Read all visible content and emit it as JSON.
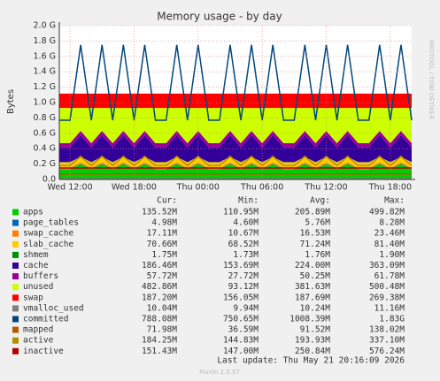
{
  "chart_data": {
    "type": "area",
    "title": "Memory usage - by day",
    "y_label": "Bytes",
    "watermark": "RRDTOOL / TOBI OETIKER",
    "categories": [
      null,
      "Wed 12:00",
      null,
      null,
      null,
      null,
      null,
      "Wed 18:00",
      null,
      null,
      null,
      null,
      null,
      "Thu 00:00",
      null,
      null,
      null,
      null,
      null,
      "Thu 06:00",
      null,
      null,
      null,
      null,
      null,
      "Thu 12:00",
      null,
      null,
      null,
      null,
      null,
      "Thu 18:00",
      null,
      null
    ],
    "ylim": [
      0,
      2
    ],
    "yticks": [
      {
        "value": 0,
        "label": "0.0"
      },
      {
        "value": 0.2,
        "label": "0.2 G"
      },
      {
        "value": 0.4,
        "label": "0.4 G"
      },
      {
        "value": 0.6,
        "label": "0.6 G"
      },
      {
        "value": 0.8,
        "label": "0.8 G"
      },
      {
        "value": 1.0,
        "label": "1.0 G"
      },
      {
        "value": 1.2,
        "label": "1.2 G"
      },
      {
        "value": 1.4,
        "label": "1.4 G"
      },
      {
        "value": 1.6,
        "label": "1.6 G"
      },
      {
        "value": 1.8,
        "label": "1.8 G"
      },
      {
        "value": 2.0,
        "label": "2.0 G"
      }
    ],
    "grid": true,
    "legend_headers": [
      "Cur:",
      "Min:",
      "Avg:",
      "Max:"
    ],
    "series": [
      {
        "name": "apps",
        "color": "#00CC00",
        "style": "area",
        "cur": "135.52M",
        "min": "110.95M",
        "avg": "205.89M",
        "max": "499.82M",
        "values": [
          0.13,
          0.13,
          0.2,
          0.13,
          0.2,
          0.13,
          0.2,
          0.13,
          0.2,
          0.13,
          0.13,
          0.2,
          0.13,
          0.2,
          0.13,
          0.13,
          0.2,
          0.13,
          0.2,
          0.13,
          0.2,
          0.13,
          0.13,
          0.2,
          0.13,
          0.2,
          0.13,
          0.2,
          0.13,
          0.13,
          0.2,
          0.13,
          0.2,
          0.13
        ]
      },
      {
        "name": "page_tables",
        "color": "#0066B3",
        "style": "area",
        "cur": "4.98M",
        "min": "4.60M",
        "avg": "5.76M",
        "max": "8.28M",
        "values": [
          0.005,
          0.005,
          0.005,
          0.005,
          0.005,
          0.005,
          0.005,
          0.005,
          0.005,
          0.005,
          0.005,
          0.005,
          0.005,
          0.005,
          0.005,
          0.005,
          0.005,
          0.005,
          0.005,
          0.005,
          0.005,
          0.005,
          0.005,
          0.005,
          0.005,
          0.005,
          0.005,
          0.005,
          0.005,
          0.005,
          0.005,
          0.005,
          0.005,
          0.005
        ]
      },
      {
        "name": "swap_cache",
        "color": "#FF8000",
        "style": "area",
        "cur": "17.11M",
        "min": "10.67M",
        "avg": "16.53M",
        "max": "23.46M",
        "values": [
          0.017,
          0.017,
          0.017,
          0.017,
          0.017,
          0.017,
          0.017,
          0.017,
          0.017,
          0.017,
          0.017,
          0.017,
          0.017,
          0.017,
          0.017,
          0.017,
          0.017,
          0.017,
          0.017,
          0.017,
          0.017,
          0.017,
          0.017,
          0.017,
          0.017,
          0.017,
          0.017,
          0.017,
          0.017,
          0.017,
          0.017,
          0.017,
          0.017,
          0.017
        ]
      },
      {
        "name": "slab_cache",
        "color": "#FFCC00",
        "style": "area",
        "cur": "70.66M",
        "min": "68.52M",
        "avg": "71.24M",
        "max": "81.40M",
        "values": [
          0.071,
          0.071,
          0.071,
          0.071,
          0.071,
          0.071,
          0.071,
          0.071,
          0.071,
          0.071,
          0.071,
          0.071,
          0.071,
          0.071,
          0.071,
          0.071,
          0.071,
          0.071,
          0.071,
          0.071,
          0.071,
          0.071,
          0.071,
          0.071,
          0.071,
          0.071,
          0.071,
          0.071,
          0.071,
          0.071,
          0.071,
          0.071,
          0.071,
          0.071
        ]
      },
      {
        "name": "shmem",
        "color": "#008F00",
        "style": "area",
        "cur": "1.75M",
        "min": "1.73M",
        "avg": "1.76M",
        "max": "1.90M",
        "values": [
          0.002,
          0.002,
          0.002,
          0.002,
          0.002,
          0.002,
          0.002,
          0.002,
          0.002,
          0.002,
          0.002,
          0.002,
          0.002,
          0.002,
          0.002,
          0.002,
          0.002,
          0.002,
          0.002,
          0.002,
          0.002,
          0.002,
          0.002,
          0.002,
          0.002,
          0.002,
          0.002,
          0.002,
          0.002,
          0.002,
          0.002,
          0.002,
          0.002,
          0.002
        ]
      },
      {
        "name": "cache",
        "color": "#330099",
        "style": "area",
        "cur": "186.46M",
        "min": "153.69M",
        "avg": "224.00M",
        "max": "363.09M",
        "values": [
          0.19,
          0.19,
          0.28,
          0.19,
          0.28,
          0.19,
          0.28,
          0.19,
          0.28,
          0.19,
          0.19,
          0.28,
          0.19,
          0.28,
          0.19,
          0.19,
          0.28,
          0.19,
          0.28,
          0.19,
          0.28,
          0.19,
          0.19,
          0.28,
          0.19,
          0.28,
          0.19,
          0.28,
          0.19,
          0.19,
          0.28,
          0.19,
          0.28,
          0.19
        ]
      },
      {
        "name": "buffers",
        "color": "#990099",
        "style": "area",
        "cur": "57.72M",
        "min": "27.72M",
        "avg": "50.25M",
        "max": "61.78M",
        "values": [
          0.057,
          0.057,
          0.057,
          0.057,
          0.057,
          0.057,
          0.057,
          0.057,
          0.057,
          0.057,
          0.057,
          0.057,
          0.057,
          0.057,
          0.057,
          0.057,
          0.057,
          0.057,
          0.057,
          0.057,
          0.057,
          0.057,
          0.057,
          0.057,
          0.057,
          0.057,
          0.057,
          0.057,
          0.057,
          0.057,
          0.057,
          0.057,
          0.057,
          0.057
        ]
      },
      {
        "name": "unused",
        "color": "#CCFF00",
        "style": "area",
        "cur": "482.86M",
        "min": "93.12M",
        "avg": "381.63M",
        "max": "500.48M",
        "values": [
          0.458,
          0.458,
          0.298,
          0.458,
          0.298,
          0.458,
          0.298,
          0.458,
          0.298,
          0.458,
          0.458,
          0.298,
          0.458,
          0.298,
          0.458,
          0.458,
          0.298,
          0.458,
          0.298,
          0.458,
          0.298,
          0.458,
          0.458,
          0.298,
          0.458,
          0.298,
          0.458,
          0.298,
          0.458,
          0.458,
          0.298,
          0.458,
          0.298,
          0.458
        ]
      },
      {
        "name": "swap",
        "color": "#FF0000",
        "style": "area",
        "cur": "187.20M",
        "min": "156.05M",
        "avg": "187.69M",
        "max": "269.38M",
        "values": [
          0.187,
          0.187,
          0.187,
          0.187,
          0.187,
          0.187,
          0.187,
          0.187,
          0.187,
          0.187,
          0.187,
          0.187,
          0.187,
          0.187,
          0.187,
          0.187,
          0.187,
          0.187,
          0.187,
          0.187,
          0.187,
          0.187,
          0.187,
          0.187,
          0.187,
          0.187,
          0.187,
          0.187,
          0.187,
          0.187,
          0.187,
          0.187,
          0.187,
          0.187
        ]
      },
      {
        "name": "vmalloc_used",
        "color": "#808080",
        "style": "line",
        "cur": "10.04M",
        "min": "9.94M",
        "avg": "10.24M",
        "max": "11.16M",
        "values": [
          0.01,
          0.01,
          0.01,
          0.01,
          0.01,
          0.01,
          0.01,
          0.01,
          0.01,
          0.01,
          0.01,
          0.01,
          0.01,
          0.01,
          0.01,
          0.01,
          0.01,
          0.01,
          0.01,
          0.01,
          0.01,
          0.01,
          0.01,
          0.01,
          0.01,
          0.01,
          0.01,
          0.01,
          0.01,
          0.01,
          0.01,
          0.01,
          0.01,
          0.01
        ]
      },
      {
        "name": "committed",
        "color": "#00487D",
        "style": "line",
        "cur": "788.08M",
        "min": "750.65M",
        "avg": "1008.39M",
        "max": "1.83G",
        "values": [
          0.77,
          0.77,
          1.75,
          0.77,
          1.75,
          0.77,
          1.75,
          0.77,
          1.75,
          0.77,
          0.77,
          1.75,
          0.77,
          1.75,
          0.77,
          0.77,
          1.75,
          0.77,
          1.75,
          0.77,
          1.75,
          0.77,
          0.77,
          1.75,
          0.77,
          1.75,
          0.77,
          1.75,
          0.77,
          0.77,
          1.75,
          0.77,
          1.75,
          0.77
        ]
      },
      {
        "name": "mapped",
        "color": "#B35A00",
        "style": "line",
        "cur": "71.98M",
        "min": "36.59M",
        "avg": "91.52M",
        "max": "138.02M",
        "values": [
          0.072,
          0.072,
          0.072,
          0.072,
          0.072,
          0.072,
          0.072,
          0.072,
          0.072,
          0.072,
          0.072,
          0.072,
          0.072,
          0.072,
          0.072,
          0.072,
          0.072,
          0.072,
          0.072,
          0.072,
          0.072,
          0.072,
          0.072,
          0.072,
          0.072,
          0.072,
          0.072,
          0.072,
          0.072,
          0.072,
          0.072,
          0.072,
          0.072,
          0.072
        ]
      },
      {
        "name": "active",
        "color": "#B38F00",
        "style": "line",
        "cur": "184.25M",
        "min": "144.83M",
        "avg": "193.93M",
        "max": "337.10M",
        "values": [
          0.18,
          0.18,
          0.3,
          0.18,
          0.3,
          0.18,
          0.3,
          0.18,
          0.3,
          0.18,
          0.18,
          0.3,
          0.18,
          0.3,
          0.18,
          0.18,
          0.3,
          0.18,
          0.3,
          0.18,
          0.3,
          0.18,
          0.18,
          0.3,
          0.18,
          0.3,
          0.18,
          0.3,
          0.18,
          0.18,
          0.3,
          0.18,
          0.3,
          0.18
        ]
      },
      {
        "name": "inactive",
        "color": "#B30000",
        "style": "line",
        "cur": "151.43M",
        "min": "147.00M",
        "avg": "250.84M",
        "max": "576.24M",
        "values": [
          0.15,
          0.15,
          0.15,
          0.15,
          0.15,
          0.15,
          0.15,
          0.15,
          0.15,
          0.15,
          0.15,
          0.15,
          0.15,
          0.15,
          0.15,
          0.15,
          0.15,
          0.15,
          0.15,
          0.15,
          0.15,
          0.15,
          0.15,
          0.15,
          0.15,
          0.15,
          0.15,
          0.15,
          0.15,
          0.15,
          0.15,
          0.15,
          0.15,
          0.15
        ]
      }
    ],
    "last_update": "Last update: Thu May 21 20:16:09 2026",
    "footer": "Munin 2.0.57"
  }
}
